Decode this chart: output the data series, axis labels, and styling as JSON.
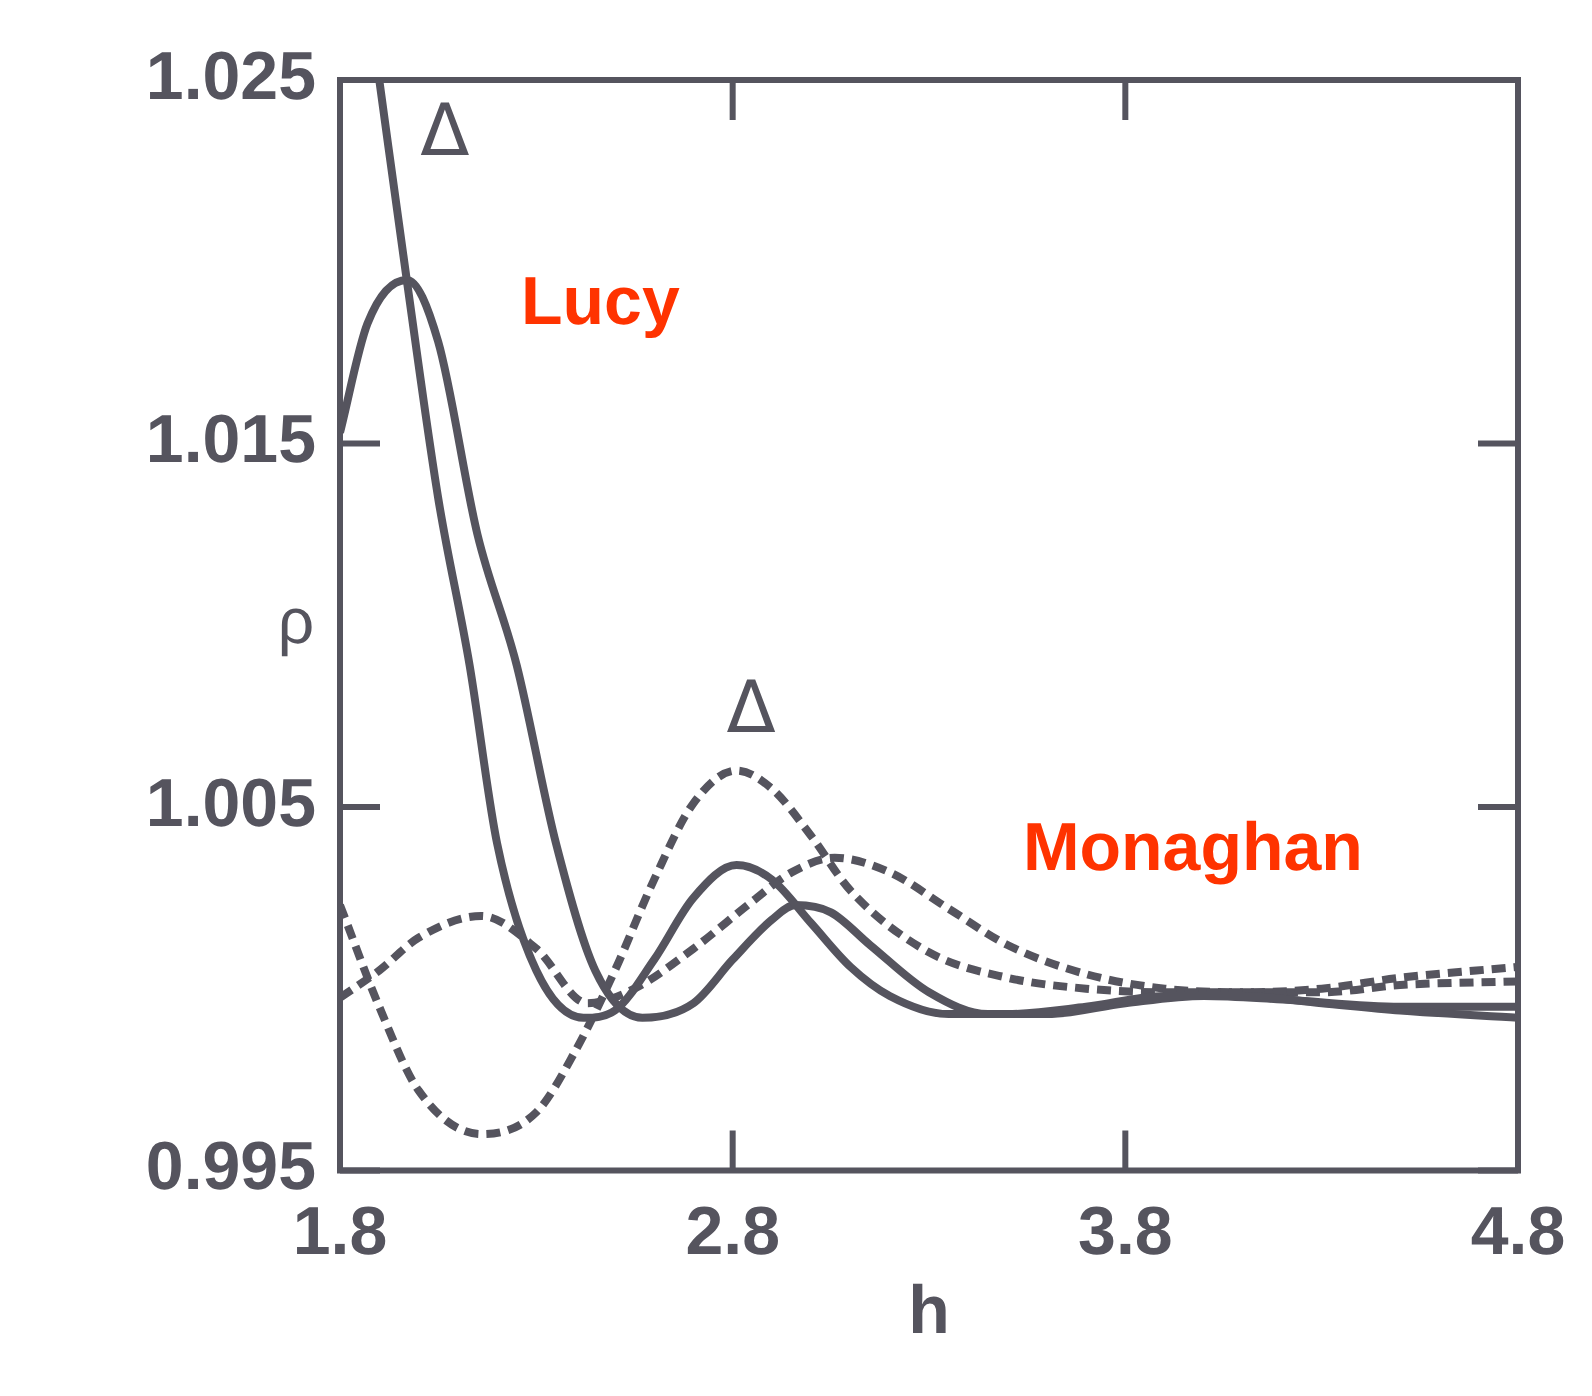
{
  "chart_data": {
    "type": "line",
    "xlabel": "h",
    "ylabel": "ρ",
    "xlim": [
      1.8,
      4.8
    ],
    "xticks": [
      1.8,
      2.8,
      3.8,
      4.8
    ],
    "ylim": [
      0.995,
      1.025
    ],
    "yticks": [
      0.995,
      1.005,
      1.015,
      1.025
    ],
    "grid": false,
    "legend": false,
    "marker": "none",
    "series": [
      {
        "color": "#55545e",
        "line_style": "solid",
        "x": [
          1.9,
          1.97,
          2.05,
          2.13,
          2.2,
          2.3,
          2.42,
          2.5,
          2.6,
          2.7,
          2.81,
          2.9,
          3.0,
          3.1,
          3.2,
          3.35,
          3.5,
          3.7,
          3.9,
          4.1,
          4.3,
          4.5,
          4.8
        ],
        "values": [
          1.025,
          1.0195,
          1.0135,
          1.0089,
          1.004,
          1.0005,
          0.9992,
          0.9994,
          1.0008,
          1.0025,
          1.0034,
          1.003,
          1.0018,
          1.0006,
          0.9998,
          0.9993,
          0.9993,
          0.9995,
          0.9998,
          0.9998,
          0.9996,
          0.9994,
          0.9992
        ]
      },
      {
        "color": "#55545e",
        "line_style": "solid",
        "x": [
          1.8,
          1.87,
          1.97,
          2.05,
          2.15,
          2.25,
          2.35,
          2.45,
          2.57,
          2.7,
          2.8,
          2.9,
          2.96,
          3.05,
          3.15,
          3.3,
          3.45,
          3.6,
          3.8,
          4.0,
          4.2,
          4.5,
          4.8
        ],
        "values": [
          1.0153,
          1.0183,
          1.0195,
          1.0178,
          1.0125,
          1.0089,
          1.004,
          1.0005,
          0.9992,
          0.9996,
          1.0008,
          1.0019,
          1.0023,
          1.0021,
          1.0012,
          0.9999,
          0.9993,
          0.9993,
          0.9996,
          0.9998,
          0.9997,
          0.9995,
          0.9995
        ]
      },
      {
        "color": "#55545e",
        "line_style": "dashed",
        "x": [
          1.8,
          1.9,
          2.0,
          2.16,
          2.3,
          2.4,
          2.5,
          2.6,
          2.7,
          2.81,
          2.9,
          3.0,
          3.1,
          3.3,
          3.5,
          3.7,
          3.9,
          4.1,
          4.3,
          4.5,
          4.8
        ],
        "values": [
          1.0023,
          0.9995,
          0.9972,
          0.996,
          0.9966,
          0.9983,
          1.0005,
          1.003,
          1.0051,
          1.006,
          1.0055,
          1.0042,
          1.0027,
          1.001,
          1.0003,
          1.0,
          0.9999,
          0.9999,
          1.0,
          1.0003,
          1.0006
        ]
      },
      {
        "color": "#55545e",
        "line_style": "dashed",
        "x": [
          1.8,
          1.9,
          2.0,
          2.16,
          2.3,
          2.43,
          2.55,
          2.7,
          2.85,
          2.95,
          3.06,
          3.2,
          3.35,
          3.5,
          3.7,
          3.9,
          4.1,
          4.3,
          4.5,
          4.8
        ],
        "values": [
          0.99975,
          1.0005,
          1.0014,
          1.002,
          1.0011,
          0.9996,
          1.0,
          1.0011,
          1.0024,
          1.0032,
          1.0036,
          1.0032,
          1.0022,
          1.0012,
          1.0004,
          1.0,
          0.9999,
          0.9999,
          1.0001,
          1.0002
        ]
      }
    ],
    "annotations": [
      "Δ",
      "Δ",
      "Lucy",
      "Monaghan"
    ]
  }
}
